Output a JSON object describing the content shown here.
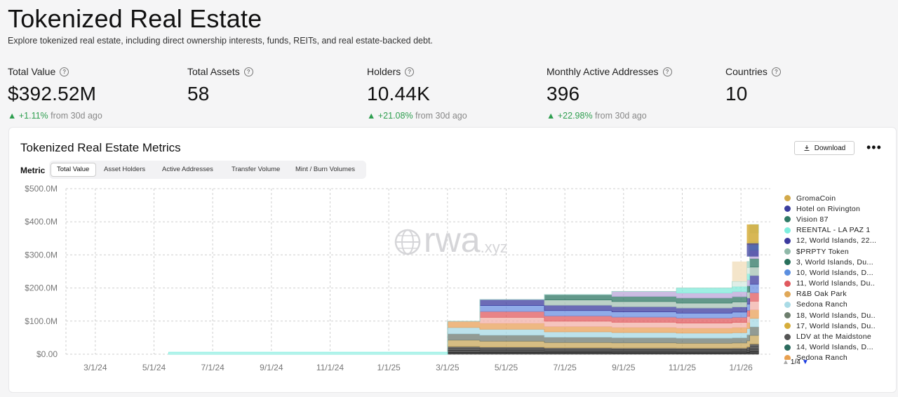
{
  "header": {
    "title": "Tokenized Real Estate",
    "subtitle": "Explore tokenized real estate, including direct ownership interests, funds, REITs, and real estate-backed debt."
  },
  "stats": [
    {
      "label": "Total Value",
      "value": "$392.52M",
      "delta": "+1.11%",
      "delta_suffix": "from 30d ago"
    },
    {
      "label": "Total Assets",
      "value": "58"
    },
    {
      "label": "Holders",
      "value": "10.44K",
      "delta": "+21.08%",
      "delta_suffix": "from 30d ago"
    },
    {
      "label": "Monthly Active Addresses",
      "value": "396",
      "delta": "+22.98%",
      "delta_suffix": "from 30d ago"
    },
    {
      "label": "Countries",
      "value": "10"
    }
  ],
  "metrics_card": {
    "title": "Tokenized Real Estate Metrics",
    "download_label": "Download",
    "more_label": "•••",
    "metric_label": "Metric",
    "tabs": [
      "Total Value",
      "Asset Holders",
      "Active Addresses",
      "Transfer Volume",
      "Mint / Burn Volumes"
    ],
    "active_tab": "Total Value",
    "watermark": {
      "brand": "rwa",
      "suffix": ".xyz"
    },
    "pager": {
      "text": "1/4",
      "up_icon": "triangle-up-icon",
      "down_icon": "triangle-down-icon"
    }
  },
  "colors": {
    "accent_up": "#2e9e4f",
    "grid": "#c8c8c8",
    "text_muted": "#888888"
  },
  "chart_data": {
    "type": "area",
    "stacked": true,
    "grid": true,
    "legend_position": "right",
    "ylim": [
      0,
      500
    ],
    "y_ticks": [
      "$0.00",
      "$100.0M",
      "$200.0M",
      "$300.0M",
      "$400.0M",
      "$500.0M"
    ],
    "y_tick_values": [
      0,
      100,
      200,
      300,
      400,
      500
    ],
    "x_ticks": [
      "3/1/24",
      "5/1/24",
      "7/1/24",
      "9/1/24",
      "11/1/24",
      "1/1/25",
      "3/1/25",
      "5/1/25",
      "7/1/25",
      "9/1/25",
      "11/1/25",
      "1/1/26"
    ],
    "x_tick_months": [
      0,
      2,
      4,
      6,
      8,
      10,
      12,
      14,
      16,
      18,
      20,
      22
    ],
    "x_months": [
      2.5,
      12.0,
      13.1,
      15.3,
      17.6,
      19.8,
      21.7,
      22.2,
      22.3
    ],
    "series": [
      {
        "name": "Vision 87",
        "color": "#2f7a66",
        "values": [
          0,
          0,
          0,
          0,
          0,
          0,
          0,
          0,
          0
        ]
      },
      {
        "name": "LDV at the Maidstone",
        "color": "#555555",
        "values": [
          0,
          0,
          0,
          0,
          0,
          0,
          0,
          0,
          0
        ]
      },
      {
        "name": "Sedona Ranch",
        "color": "#a9dbe6",
        "values": [
          0,
          0,
          0,
          0,
          0,
          0,
          0,
          0,
          0
        ]
      },
      {
        "name": "REENTAL - LA PAZ 1",
        "color": "#7eeede",
        "values": [
          6,
          10,
          10,
          10,
          11,
          11,
          12,
          12,
          12
        ]
      },
      {
        "name": "R&B Oak Park",
        "color": "#e0a858",
        "values": [
          0,
          0,
          0,
          0,
          0,
          0,
          0,
          0,
          0
        ]
      },
      {
        "name": "18, World Islands, Du...",
        "color": "#6d7e6d",
        "values": [
          0,
          0,
          0,
          0,
          0,
          0,
          0,
          0,
          0
        ]
      },
      {
        "name": "17, World Islands, Du...",
        "color": "#d6ad3a",
        "values": [
          0,
          0,
          0,
          0,
          0,
          0,
          0,
          0,
          0
        ]
      },
      {
        "name": "14, World Islands, D...",
        "color": "#2b6b5e",
        "values": [
          0,
          0,
          0,
          0,
          0,
          0,
          0,
          0,
          0
        ]
      },
      {
        "name": "3, World Islands, Du...",
        "color": "#28705b",
        "values": [
          0,
          0,
          0,
          0,
          0,
          0,
          0,
          0,
          0
        ]
      },
      {
        "name": "11, World Islands, Du...",
        "color": "#e0595e",
        "values": [
          0,
          0,
          0,
          0,
          0,
          0,
          0,
          0,
          0
        ]
      },
      {
        "name": "10, World Islands, D...",
        "color": "#5b8fe0",
        "values": [
          0,
          0,
          0,
          0,
          0,
          0,
          0,
          0,
          0
        ]
      },
      {
        "name": "12, World Islands, 22...",
        "color": "#3b3a9e",
        "values": [
          0,
          0,
          0,
          0,
          0,
          0,
          0,
          0,
          0
        ]
      },
      {
        "name": "$PRPTY Token",
        "color": "#8fb8a8",
        "values": [
          0,
          0,
          0,
          0,
          0,
          0,
          0,
          0,
          0
        ]
      },
      {
        "name": "Hotel on Rivington",
        "color": "#3a3d9e",
        "values": [
          0,
          0,
          0,
          0,
          0,
          0,
          0,
          0,
          0
        ]
      },
      {
        "name": "GromaCoin",
        "color": "#d2a94a",
        "values": [
          0,
          0,
          0,
          0,
          0,
          0,
          0,
          0,
          0
        ]
      }
    ],
    "total_approx": [
      6,
      100,
      165,
      180,
      190,
      200,
      220,
      280,
      392
    ]
  },
  "legend": {
    "items": [
      {
        "name": "GromaCoin",
        "color": "#d2a94a"
      },
      {
        "name": "Hotel on Rivington",
        "color": "#3a3d9e"
      },
      {
        "name": "Vision 87",
        "color": "#2f7a66"
      },
      {
        "name": "REENTAL - LA PAZ 1",
        "color": "#7eeede"
      },
      {
        "name": "12, World Islands, 22...",
        "color": "#3b3a9e"
      },
      {
        "name": "$PRPTY Token",
        "color": "#8fb8a8"
      },
      {
        "name": "3, World Islands, Du...",
        "color": "#28705b"
      },
      {
        "name": "10, World Islands, D...",
        "color": "#5b8fe0"
      },
      {
        "name": "11, World Islands, Du...",
        "color": "#e0595e"
      },
      {
        "name": "R&B Oak Park",
        "color": "#e0a858"
      },
      {
        "name": "Sedona Ranch",
        "color": "#a9dbe6"
      },
      {
        "name": "18, World Islands, Du...",
        "color": "#6d7e6d"
      },
      {
        "name": "17, World Islands, Du...",
        "color": "#d6ad3a"
      },
      {
        "name": "LDV at the Maidstone",
        "color": "#555555"
      },
      {
        "name": "14, World Islands, D...",
        "color": "#2b6b5e"
      },
      {
        "name": "Sedona Ranch",
        "color": "#e8a050"
      }
    ]
  }
}
